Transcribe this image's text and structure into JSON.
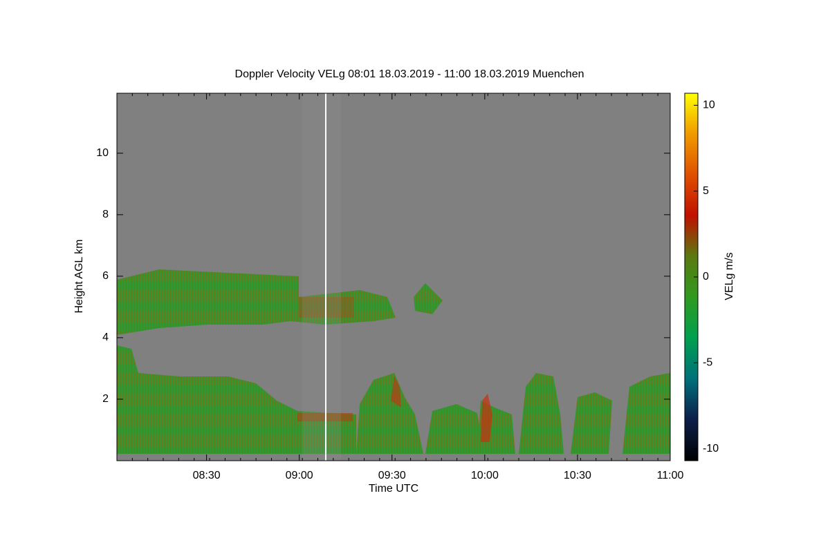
{
  "chart_data": {
    "type": "heatmap",
    "title": "Doppler Velocity VELg   08:01 18.03.2019 - 11:00 18.03.2019 Muenchen",
    "x_label": "Time UTC",
    "y_label": "Height AGL km",
    "xlim": [
      481,
      660
    ],
    "xticks": [
      {
        "value": 510,
        "label": "08:30"
      },
      {
        "value": 540,
        "label": "09:00"
      },
      {
        "value": 570,
        "label": "09:30"
      },
      {
        "value": 600,
        "label": "10:00"
      },
      {
        "value": 630,
        "label": "10:30"
      },
      {
        "value": 660,
        "label": "11:00"
      }
    ],
    "ylim": [
      0,
      11.95
    ],
    "yticks": [
      2,
      4,
      6,
      8,
      10
    ],
    "colorbar": {
      "label": "VELg m/s",
      "clim": [
        -10.7,
        10.7
      ],
      "ticks": [
        -10,
        -5,
        0,
        5,
        10
      ],
      "colors": [
        "#000000",
        "#0c1e4a",
        "#00707a",
        "#00a050",
        "#309a20",
        "#5a7a10",
        "#c01000",
        "#e05000",
        "#f09a00",
        "#ffff00"
      ]
    },
    "background": "#808080"
  }
}
